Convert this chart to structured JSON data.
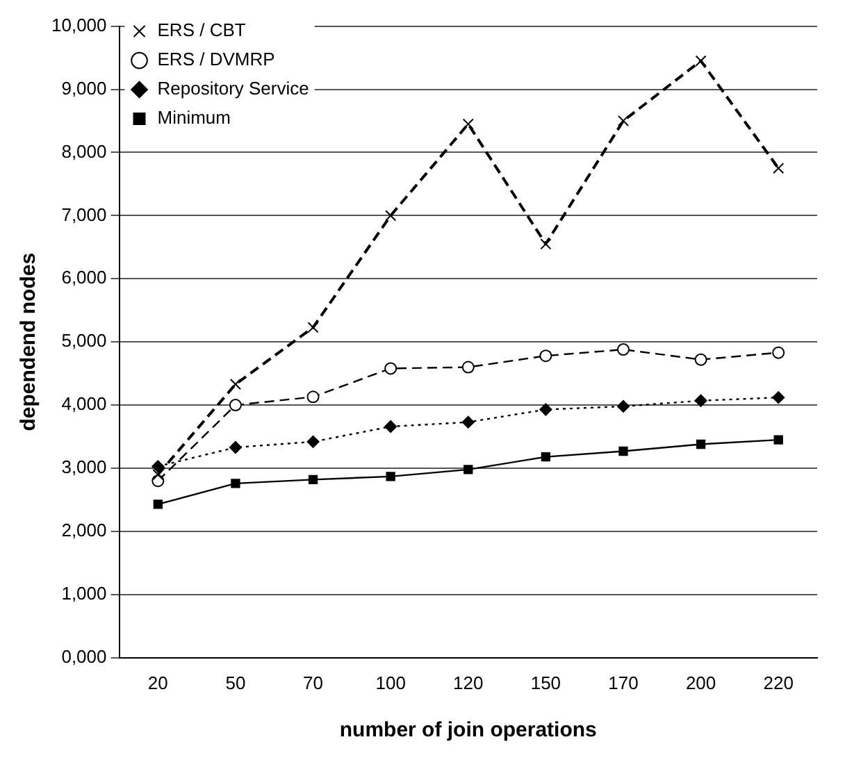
{
  "chart_data": {
    "type": "line",
    "xlabel": "number of join operations",
    "ylabel": "dependend nodes",
    "categories": [
      "20",
      "50",
      "70",
      "100",
      "120",
      "150",
      "170",
      "200",
      "220"
    ],
    "ylim": [
      0,
      10000
    ],
    "yticks": [
      {
        "value": 0,
        "label": "0,000"
      },
      {
        "value": 1000,
        "label": "1,000"
      },
      {
        "value": 2000,
        "label": "2,000"
      },
      {
        "value": 3000,
        "label": "3,000"
      },
      {
        "value": 4000,
        "label": "4,000"
      },
      {
        "value": 5000,
        "label": "5,000"
      },
      {
        "value": 6000,
        "label": "6,000"
      },
      {
        "value": 7000,
        "label": "7,000"
      },
      {
        "value": 8000,
        "label": "8,000"
      },
      {
        "value": 9000,
        "label": "9,000"
      },
      {
        "value": 10000,
        "label": "10,000"
      }
    ],
    "grid": "y",
    "legend": "top left",
    "series": [
      {
        "name": "ERS / CBT",
        "color": "#000000",
        "marker": "cross",
        "line_style": "dashed",
        "values": [
          2900,
          4330,
          5230,
          7000,
          8450,
          6550,
          8500,
          9450,
          7750
        ]
      },
      {
        "name": "ERS / DVMRP",
        "color": "#000000",
        "marker": "circle",
        "line_style": "dashed",
        "values": [
          2800,
          4000,
          4130,
          4580,
          4600,
          4780,
          4880,
          4720,
          4830
        ]
      },
      {
        "name": "Repository Service",
        "color": "#000000",
        "marker": "diamond",
        "line_style": "dotted",
        "values": [
          3030,
          3330,
          3420,
          3660,
          3730,
          3930,
          3980,
          4070,
          4120
        ]
      },
      {
        "name": "Minimum",
        "color": "#000000",
        "marker": "square",
        "line_style": "solid",
        "values": [
          2430,
          2760,
          2820,
          2870,
          2980,
          3180,
          3270,
          3380,
          3450
        ]
      }
    ]
  }
}
